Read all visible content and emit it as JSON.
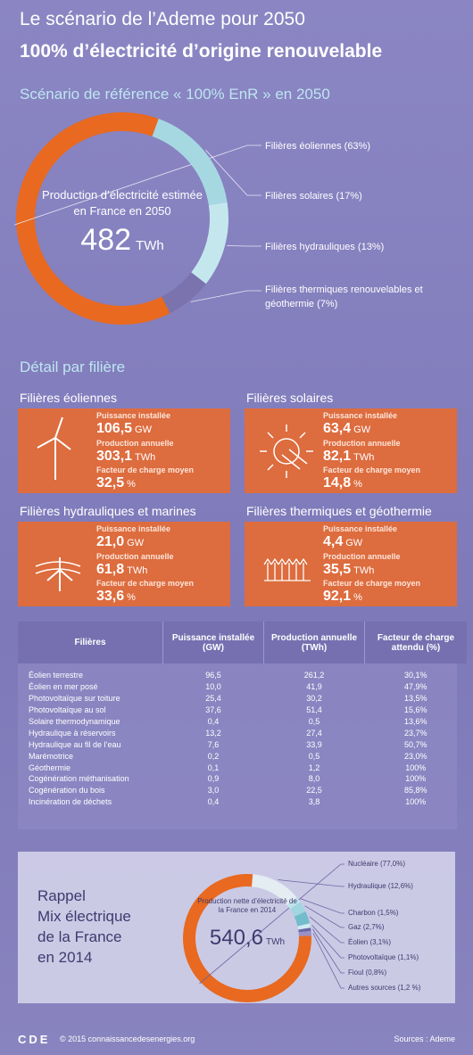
{
  "header": {
    "line1": "Le scénario de l’Ademe pour 2050",
    "line2": "100% d’électricité d’origine renouvelable"
  },
  "chart_data": [
    {
      "type": "pie",
      "title": "Scénario de référence « 100% EnR » en 2050",
      "center_text": "Production d’électricité estimée en France en 2050",
      "total": 482,
      "total_unit": "TWh",
      "categories": [
        "Filières éoliennes (63%)",
        "Filières solaires (17%)",
        "Filières hydrauliques (13%)",
        "Filières thermiques renouvelables et géothermie (7%)"
      ],
      "values": [
        63,
        17,
        13,
        7
      ],
      "colors": [
        "#e8691f",
        "#a6d8e2",
        "#c4e7ee",
        "#7a73ae"
      ]
    },
    {
      "type": "pie",
      "title": [
        "Rappel",
        "Mix électrique",
        "de la France",
        "en 2014"
      ],
      "center_text": "Production nette d’électricité de la France en 2014",
      "total": {
        "value": 540.6,
        "label": "540,6"
      },
      "total_unit": "TWh",
      "categories": [
        "Nucléaire (77,0%)",
        "Hydraulique (12,6%)",
        "Charbon (1,5%)",
        "Gaz (2,7%)",
        "Éolien (3,1%)",
        "Photovoltaïque (1,1%)",
        "Fioul (0,8%)",
        "Autres sources (1,2 %)"
      ],
      "values": [
        77.0,
        12.6,
        1.5,
        2.7,
        3.1,
        1.1,
        0.8,
        1.2
      ],
      "colors": [
        "#e8691f",
        "#e4edf2",
        "#bfe3ea",
        "#a2d5df",
        "#72bccb",
        "#cdebf0",
        "#6a64a4",
        "#9891c6"
      ]
    }
  ],
  "detail": {
    "title": "Détail par filière",
    "cards": [
      {
        "title": "Filières éoliennes",
        "metrics": [
          {
            "label": "Puissance installée",
            "value": "106,5",
            "unit": "GW"
          },
          {
            "label": "Production annuelle",
            "value": "303,1",
            "unit": "TWh"
          },
          {
            "label": "Facteur de charge moyen",
            "value": "32,5",
            "unit": "%"
          }
        ]
      },
      {
        "title": "Filières solaires",
        "metrics": [
          {
            "label": "Puissance installée",
            "value": "63,4",
            "unit": "GW"
          },
          {
            "label": "Production annuelle",
            "value": "82,1",
            "unit": "TWh"
          },
          {
            "label": "Facteur de charge moyen",
            "value": "14,8",
            "unit": "%"
          }
        ]
      },
      {
        "title": "Filières hydrauliques et marines",
        "metrics": [
          {
            "label": "Puissance installée",
            "value": "21,0",
            "unit": "GW"
          },
          {
            "label": "Production annuelle",
            "value": "61,8",
            "unit": "TWh"
          },
          {
            "label": "Facteur de charge moyen",
            "value": "33,6",
            "unit": "%"
          }
        ]
      },
      {
        "title": "Filières thermiques et géothermie",
        "metrics": [
          {
            "label": "Puissance installée",
            "value": "4,4",
            "unit": "GW"
          },
          {
            "label": "Production annuelle",
            "value": "35,5",
            "unit": "TWh"
          },
          {
            "label": "Facteur de charge moyen",
            "value": "92,1",
            "unit": "%"
          }
        ]
      }
    ]
  },
  "table": {
    "headers": [
      "Filières",
      "Puissance installée (GW)",
      "Production annuelle (TWh)",
      "Facteur de charge attendu (%)"
    ],
    "rows": [
      [
        "Éolien terrestre",
        "96,5",
        "261,2",
        "30,1%"
      ],
      [
        "Éolien en mer posé",
        "10,0",
        "41,9",
        "47,9%"
      ],
      [
        "Photovoltaïque sur toiture",
        "25,4",
        "30,2",
        "13,5%"
      ],
      [
        "Photovoltaïque au sol",
        "37,6",
        "51,4",
        "15,6%"
      ],
      [
        "Solaire thermodynamique",
        "0,4",
        "0,5",
        "13,6%"
      ],
      [
        "Hydraulique à réservoirs",
        "13,2",
        "27,4",
        "23,7%"
      ],
      [
        "Hydraulique au fil de l’eau",
        "7,6",
        "33,9",
        "50,7%"
      ],
      [
        "Marémotrice",
        "0,2",
        "0,5",
        "23,0%"
      ],
      [
        "Géothermie",
        "0,1",
        "1,2",
        "100%"
      ],
      [
        "Cogénération méthanisation",
        "0,9",
        "8,0",
        "100%"
      ],
      [
        "Cogénération du bois",
        "3,0",
        "22,5",
        "85,8%"
      ],
      [
        "Incinération de déchets",
        "0,4",
        "3,8",
        "100%"
      ]
    ]
  },
  "footer": {
    "logo": "CDE",
    "copyright": "© 2015 connaissancedesenergies.org",
    "sources": "Sources : Ademe"
  }
}
